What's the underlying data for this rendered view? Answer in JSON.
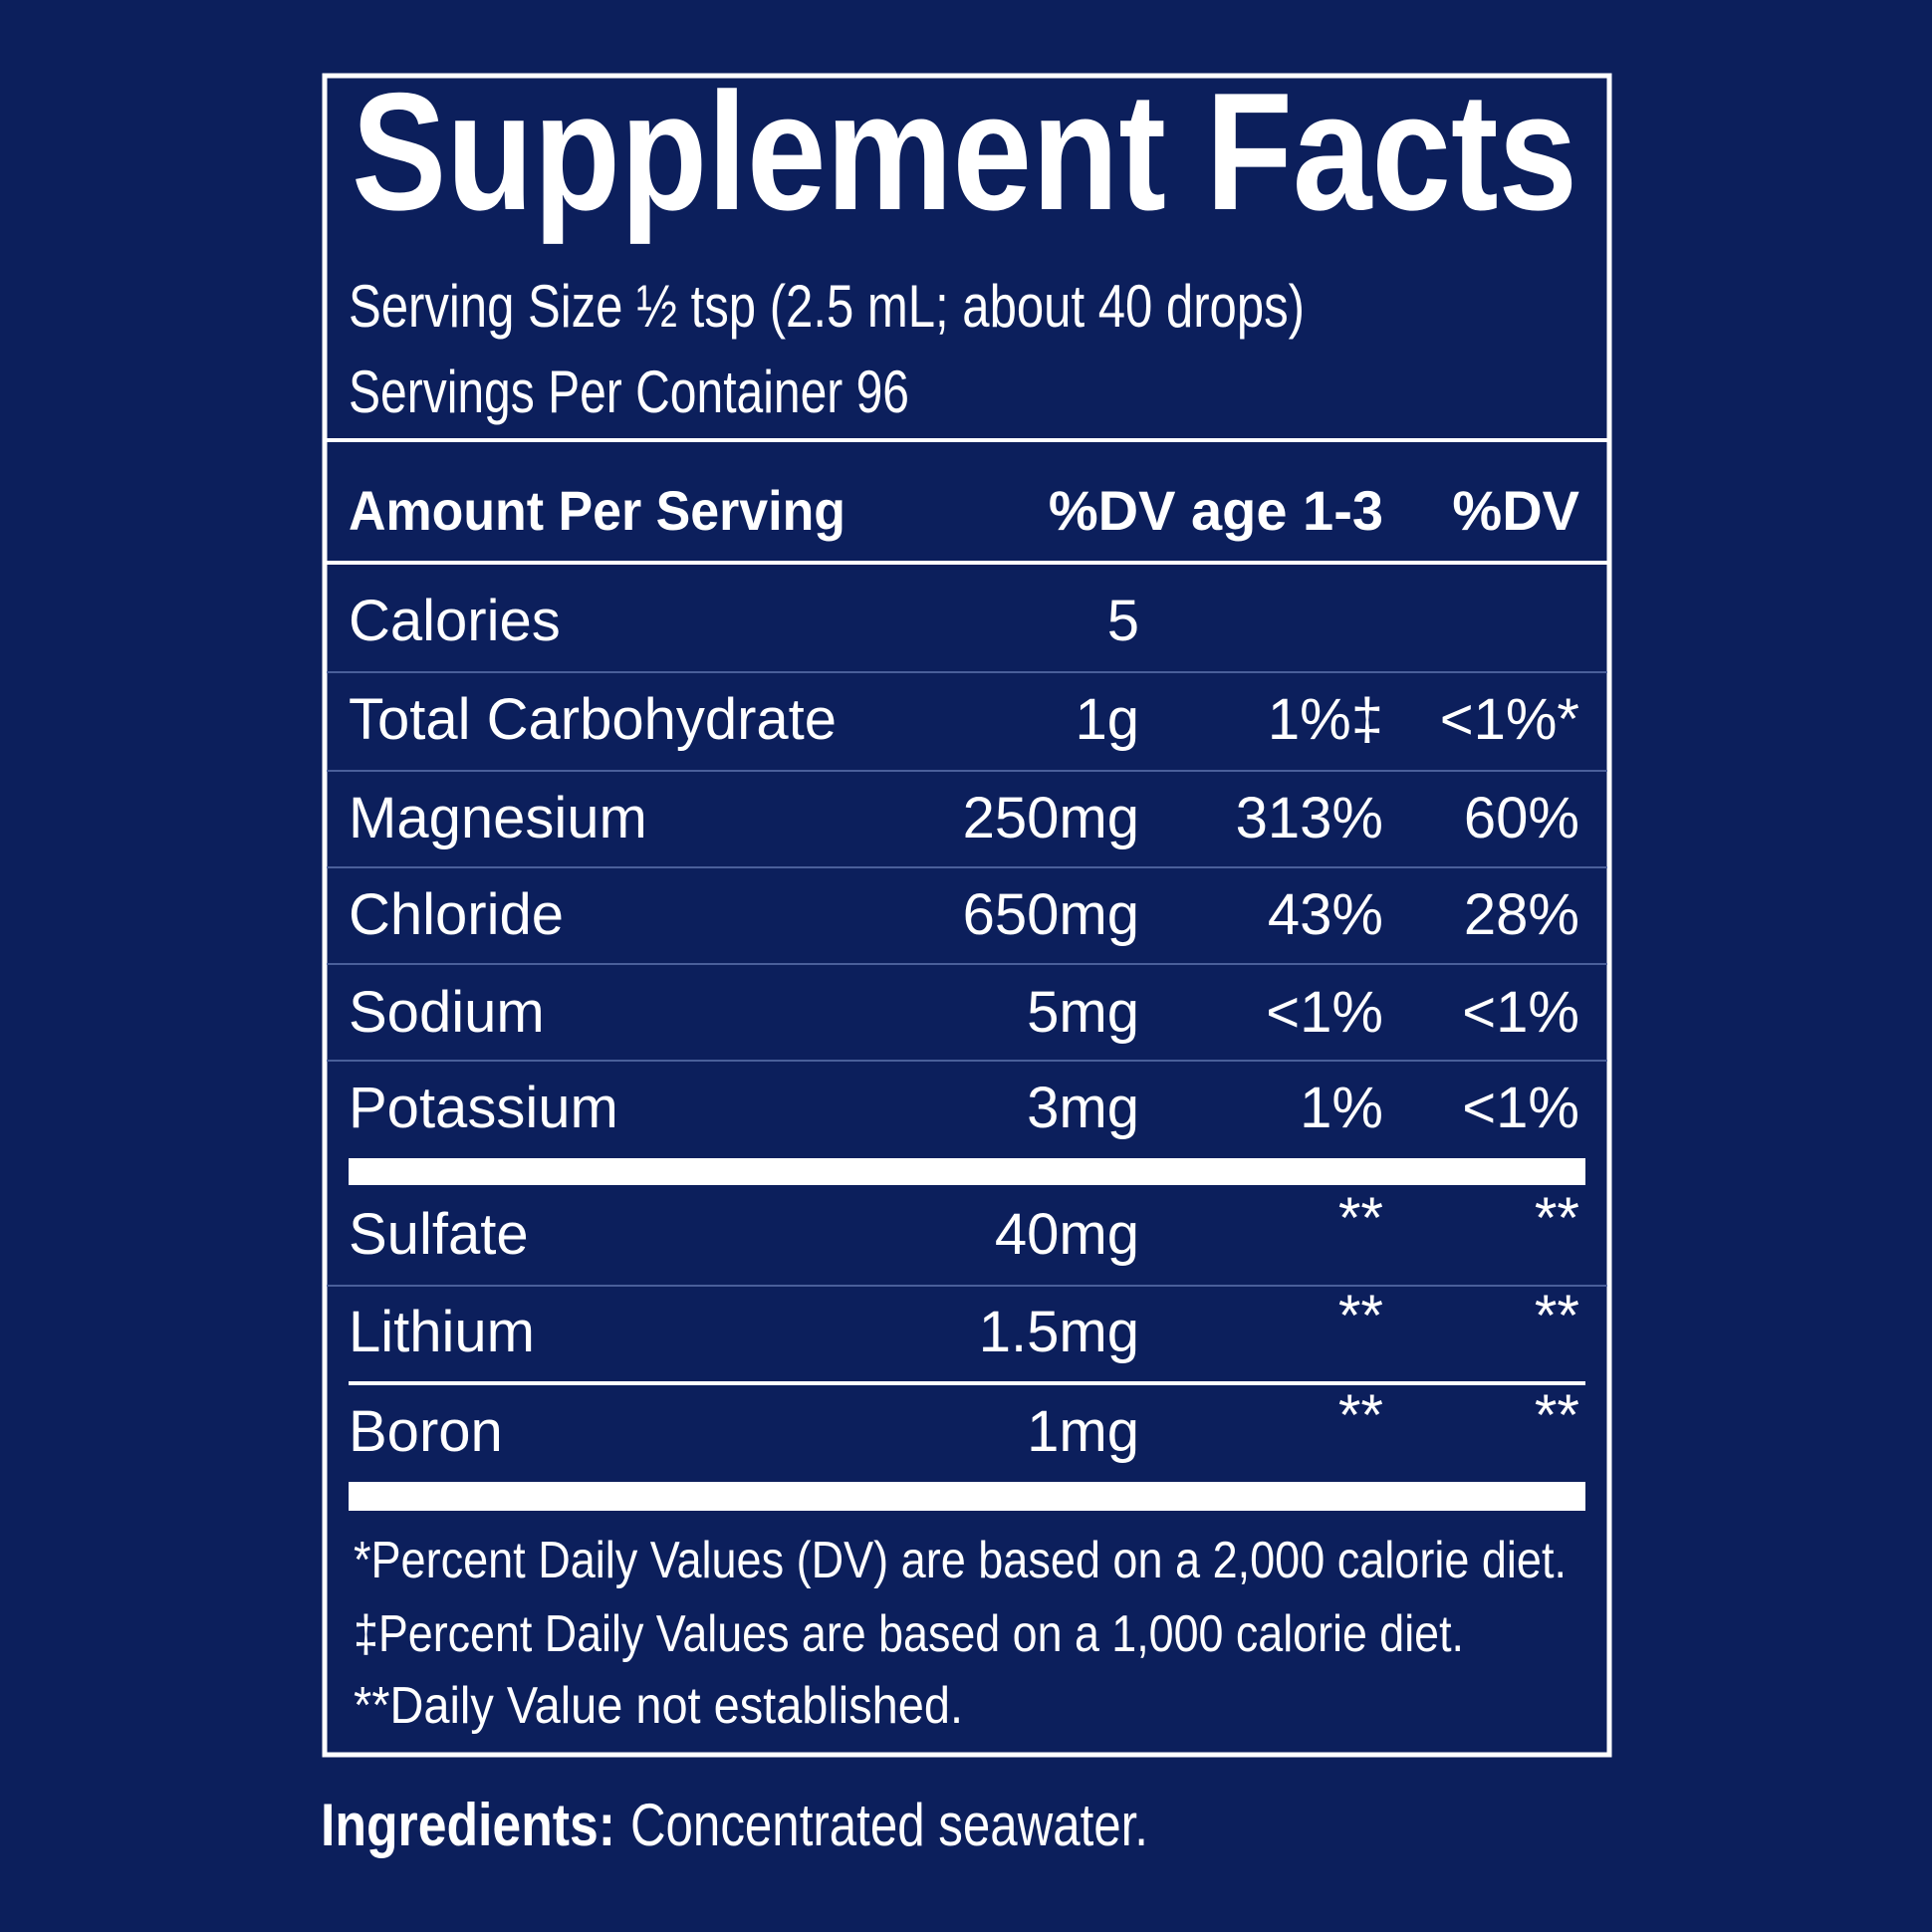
{
  "title": "Supplement Facts",
  "serving_size": "Serving Size ½ tsp (2.5 mL; about 40 drops)",
  "servings_per_container": "Servings Per Container 96",
  "table": {
    "header": [
      "Amount Per Serving",
      "%DV age 1-3",
      "%DV"
    ],
    "rows": [
      [
        "Calories",
        "5"
      ],
      [
        "Total Carbohydrate",
        "1g",
        "1%‡",
        "<1%*"
      ],
      [
        "Magnesium",
        "250mg",
        "313%",
        "60%"
      ],
      [
        "Chloride",
        "650mg",
        "43%",
        "28%"
      ],
      [
        "Sodium",
        "5mg",
        "<1%",
        "<1%"
      ],
      [
        "Potassium",
        "3mg",
        "1%",
        "<1%"
      ],
      [
        "Sulfate",
        "40mg",
        "**",
        "**"
      ],
      [
        "Lithium",
        "1.5mg",
        "**",
        "**"
      ],
      [
        "Boron",
        "1mg",
        "**",
        "**"
      ]
    ]
  },
  "footnotes": [
    "*Percent Daily Values (DV) are based on a 2,000 calorie diet.",
    "‡Percent Daily Values are based on a 1,000 calorie diet.",
    "**Daily Value not established."
  ],
  "ingredients": {
    "label": "Ingredients:",
    "text": "Concentrated seawater."
  }
}
